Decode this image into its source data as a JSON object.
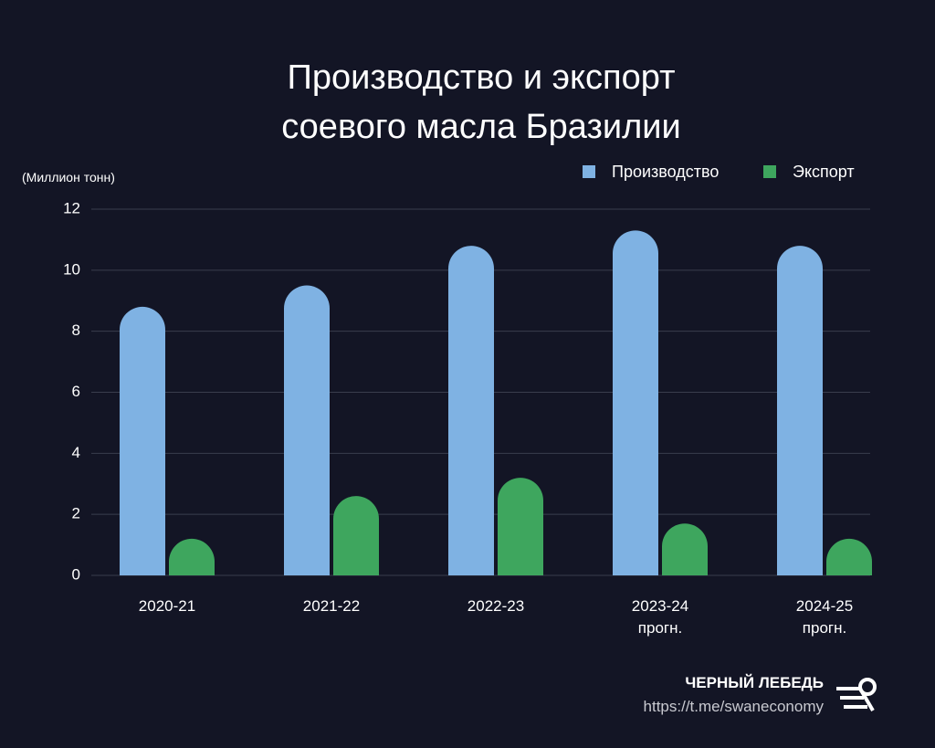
{
  "chart_data": {
    "type": "bar",
    "title": "Производство и экспорт\nсоевого масла Бразилии",
    "y_axis_label": "(Миллион тонн)",
    "categories": [
      "2020-21",
      "2021-22",
      "2022-23",
      "2023-24\nпрогн.",
      "2024-25\nпрогн."
    ],
    "series": [
      {
        "name": "Производство",
        "color": "#7fb2e3",
        "values": [
          8.8,
          9.5,
          10.8,
          11.3,
          10.8
        ]
      },
      {
        "name": "Экспорт",
        "color": "#3ea65e",
        "values": [
          1.2,
          2.6,
          3.2,
          1.7,
          1.2
        ]
      }
    ],
    "ylim": [
      0,
      12
    ],
    "yticks": [
      0,
      2,
      4,
      6,
      8,
      10,
      12
    ],
    "grid": true
  },
  "footer": {
    "brand": "ЧЕРНЫЙ ЛЕБЕДЬ",
    "link": "https://t.me/swaneconomy"
  }
}
